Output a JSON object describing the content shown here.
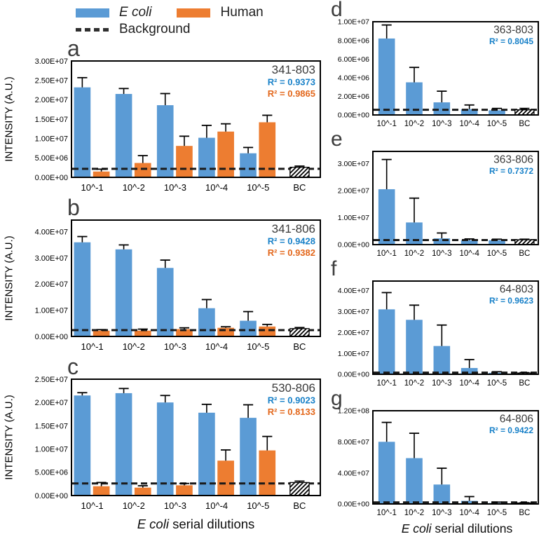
{
  "figure": {
    "legend": {
      "ecoli_label": "E coli",
      "human_label": "Human",
      "background_label": "Background"
    },
    "ylabel_intensity": "INTENSITY (A.U.)",
    "xlabel_italic": "E coli",
    "xlabel_rest": " serial dilutions",
    "colors": {
      "ecoli_bar": "#5B9BD5",
      "human_bar": "#ED7D31",
      "r2_ecoli_text": "#1780c8",
      "r2_human_text": "#e3671b",
      "title_text": "#3a3a3a",
      "axis": "#000000",
      "background_line": "#1a1a1a"
    }
  },
  "chart_data": [
    {
      "panel": "a",
      "type": "bar",
      "column": "left",
      "title": "341-803",
      "r2": [
        {
          "label": "R² = 0.9373",
          "series": "ecoli"
        },
        {
          "label": "R² = 0.9865",
          "series": "human"
        }
      ],
      "categories": [
        "10^-1",
        "10^-2",
        "10^-3",
        "10^-4",
        "10^-5",
        "BC"
      ],
      "ymax": 30000000.0,
      "yticks": [
        {
          "v": 0,
          "label": "0.00E+00"
        },
        {
          "v": 5000000.0,
          "label": "5.00E+06"
        },
        {
          "v": 10000000.0,
          "label": "1.00E+07"
        },
        {
          "v": 15000000.0,
          "label": "1.50E+07"
        },
        {
          "v": 20000000.0,
          "label": "2.00E+07"
        },
        {
          "v": 25000000.0,
          "label": "2.50E+07"
        },
        {
          "v": 30000000.0,
          "label": "3.00E+07"
        }
      ],
      "series": [
        {
          "name": "E coli",
          "key": "ecoli",
          "values": [
            23200000.0,
            21500000.0,
            18600000.0,
            10200000.0,
            6200000.0
          ],
          "errors": [
            2500000.0,
            1400000.0,
            3000000.0,
            3200000.0,
            1500000.0
          ]
        },
        {
          "name": "Human",
          "key": "human",
          "values": [
            1500000.0,
            3700000.0,
            8100000.0,
            11800000.0,
            14200000.0
          ],
          "errors": [
            600000.0,
            1900000.0,
            2500000.0,
            2000000.0,
            1800000.0
          ]
        }
      ],
      "bc": {
        "label": "BC",
        "value": 2600000.0,
        "error": 300000.0
      },
      "background": 2200000.0
    },
    {
      "panel": "b",
      "type": "bar",
      "column": "left",
      "title": "341-806",
      "r2": [
        {
          "label": "R² = 0.9428",
          "series": "ecoli"
        },
        {
          "label": "R² = 0.9382",
          "series": "human"
        }
      ],
      "categories": [
        "10^-1",
        "10^-2",
        "10^-3",
        "10^-4",
        "10^-5",
        "BC"
      ],
      "ymax": 44500000.0,
      "yticks": [
        {
          "v": 0,
          "label": "0.00E+00"
        },
        {
          "v": 10000000.0,
          "label": "1.00E+07"
        },
        {
          "v": 20000000.0,
          "label": "2.00E+07"
        },
        {
          "v": 30000000.0,
          "label": "3.00E+07"
        },
        {
          "v": 40000000.0,
          "label": "4.00E+07"
        }
      ],
      "series": [
        {
          "name": "E coli",
          "key": "ecoli",
          "values": [
            36000000.0,
            33300000.0,
            26200000.0,
            10800000.0,
            6000000.0
          ],
          "errors": [
            2200000.0,
            1700000.0,
            3000000.0,
            3300000.0,
            3500000.0
          ]
        },
        {
          "name": "Human",
          "key": "human",
          "values": [
            2200000.0,
            2200000.0,
            2800000.0,
            3300000.0,
            3800000.0
          ],
          "errors": [
            400000.0,
            600000.0,
            500000.0,
            400000.0,
            800000.0
          ]
        }
      ],
      "bc": {
        "label": "BC",
        "value": 3000000.0,
        "error": 400000.0
      },
      "background": 2400000.0
    },
    {
      "panel": "c",
      "type": "bar",
      "column": "left",
      "title": "530-806",
      "r2": [
        {
          "label": "R² = 0.9023",
          "series": "ecoli"
        },
        {
          "label": "R² = 0.8133",
          "series": "human"
        }
      ],
      "categories": [
        "10^-1",
        "10^-2",
        "10^-3",
        "10^-4",
        "10^-5",
        "BC"
      ],
      "ymax": 25000000.0,
      "yticks": [
        {
          "v": 0,
          "label": "0.00E+00"
        },
        {
          "v": 5000000.0,
          "label": "5.00E+06"
        },
        {
          "v": 10000000.0,
          "label": "1.00E+07"
        },
        {
          "v": 15000000.0,
          "label": "1.50E+07"
        },
        {
          "v": 20000000.0,
          "label": "2.00E+07"
        },
        {
          "v": 25000000.0,
          "label": "2.50E+07"
        }
      ],
      "series": [
        {
          "name": "E coli",
          "key": "ecoli",
          "values": [
            21500000.0,
            22000000.0,
            20000000.0,
            17800000.0,
            16700000.0
          ],
          "errors": [
            600000.0,
            1000000.0,
            1500000.0,
            1800000.0,
            2800000.0
          ]
        },
        {
          "name": "Human",
          "key": "human",
          "values": [
            2000000.0,
            1700000.0,
            2200000.0,
            7500000.0,
            9700000.0
          ],
          "errors": [
            800000.0,
            400000.0,
            400000.0,
            2300000.0,
            3000000.0
          ]
        }
      ],
      "bc": {
        "label": "BC",
        "value": 2800000.0,
        "error": 300000.0
      },
      "background": 2600000.0
    },
    {
      "panel": "d",
      "type": "bar",
      "column": "right",
      "title": "363-803",
      "r2": [
        {
          "label": "R² = 0.8045",
          "series": "ecoli"
        }
      ],
      "categories": [
        "10^-1",
        "10^-2",
        "10^-3",
        "10^-4",
        "10^-5",
        "BC"
      ],
      "ymax": 10000000.0,
      "yticks": [
        {
          "v": 0,
          "label": "0.00E+00"
        },
        {
          "v": 2000000.0,
          "label": "2.00E+06"
        },
        {
          "v": 4000000.0,
          "label": "4.00E+06"
        },
        {
          "v": 6000000.0,
          "label": "6.00E+06"
        },
        {
          "v": 8000000.0,
          "label": "8.00E+06"
        },
        {
          "v": 10000000.0,
          "label": "1.00E+07"
        }
      ],
      "series": [
        {
          "name": "E coli",
          "key": "ecoli",
          "values": [
            8200000.0,
            3500000.0,
            1350000.0,
            620000.0,
            500000.0
          ],
          "errors": [
            1450000.0,
            1600000.0,
            1200000.0,
            450000.0,
            200000.0
          ]
        }
      ],
      "bc": {
        "label": "BC",
        "value": 550000.0,
        "error": 150000.0
      },
      "background": 550000.0
    },
    {
      "panel": "e",
      "type": "bar",
      "column": "right",
      "title": "363-806",
      "r2": [
        {
          "label": "R² = 0.7372",
          "series": "ecoli"
        }
      ],
      "categories": [
        "10^-1",
        "10^-2",
        "10^-3",
        "10^-4",
        "10^-5",
        "BC"
      ],
      "ymax": 34500000.0,
      "yticks": [
        {
          "v": 0,
          "label": "0.00E+00"
        },
        {
          "v": 10000000.0,
          "label": "1.00E+07"
        },
        {
          "v": 20000000.0,
          "label": "2.00E+07"
        },
        {
          "v": 30000000.0,
          "label": "3.00E+07"
        }
      ],
      "series": [
        {
          "name": "E coli",
          "key": "ecoli",
          "values": [
            20500000.0,
            8200000.0,
            2300000.0,
            1600000.0,
            1600000.0
          ],
          "errors": [
            11000000.0,
            9000000.0,
            2000000.0,
            500000.0,
            400000.0
          ]
        }
      ],
      "bc": {
        "label": "BC",
        "value": 1800000.0,
        "error": 200000.0
      },
      "background": 1700000.0
    },
    {
      "panel": "f",
      "type": "bar",
      "column": "right",
      "title": "64-803",
      "r2": [
        {
          "label": "R² = 0.9623",
          "series": "ecoli"
        }
      ],
      "categories": [
        "10^-1",
        "10^-2",
        "10^-3",
        "10^-4",
        "10^-5",
        "BC"
      ],
      "ymax": 44500000.0,
      "yticks": [
        {
          "v": 0,
          "label": "0.00E+00"
        },
        {
          "v": 10000000.0,
          "label": "1.00E+07"
        },
        {
          "v": 20000000.0,
          "label": "2.00E+07"
        },
        {
          "v": 30000000.0,
          "label": "3.00E+07"
        },
        {
          "v": 40000000.0,
          "label": "4.00E+07"
        }
      ],
      "series": [
        {
          "name": "E coli",
          "key": "ecoli",
          "values": [
            31000000.0,
            26000000.0,
            13500000.0,
            3000000.0,
            700000.0
          ],
          "errors": [
            8000000.0,
            7000000.0,
            10000000.0,
            4000000.0,
            500000.0
          ]
        }
      ],
      "bc": {
        "label": "BC",
        "value": 600000.0,
        "error": 200000.0
      },
      "background": 800000.0
    },
    {
      "panel": "g",
      "type": "bar",
      "column": "right",
      "title": "64-806",
      "r2": [
        {
          "label": "R² = 0.9422",
          "series": "ecoli"
        }
      ],
      "categories": [
        "10^-1",
        "10^-2",
        "10^-3",
        "10^-4",
        "10^-5",
        "BC"
      ],
      "ymax": 120000000.0,
      "yticks": [
        {
          "v": 0,
          "label": "0.00E+00"
        },
        {
          "v": 40000000.0,
          "label": "4.00E+07"
        },
        {
          "v": 80000000.0,
          "label": "8.00E+07"
        },
        {
          "v": 120000000.0,
          "label": "1.20E+08"
        }
      ],
      "series": [
        {
          "name": "E coli",
          "key": "ecoli",
          "values": [
            80000000.0,
            59000000.0,
            25000000.0,
            4000000.0,
            1200000.0
          ],
          "errors": [
            25000000.0,
            32000000.0,
            21000000.0,
            5500000.0,
            1200000.0
          ]
        }
      ],
      "bc": {
        "label": "BC",
        "value": 1200000.0,
        "error": 400000.0
      },
      "background": 2000000.0
    }
  ]
}
